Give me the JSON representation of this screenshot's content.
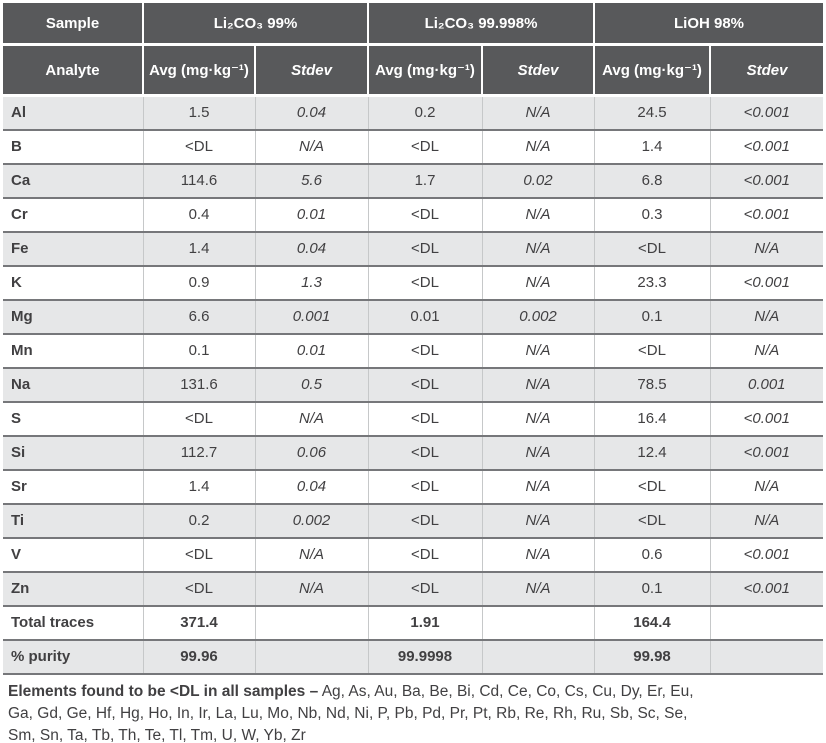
{
  "colors": {
    "header_bg": "#58595b",
    "header_text": "#ffffff",
    "row_shade_bg": "#e6e7e8",
    "row_bg": "#ffffff",
    "text": "#414042",
    "row_divider": "#76777a",
    "column_divider": "#c6c8c9"
  },
  "table": {
    "header": {
      "sample": "Sample",
      "analyte": "Analyte",
      "samples": [
        "Li₂CO₃ 99%",
        "Li₂CO₃ 99.998%",
        "LiOH 98%"
      ],
      "avg": "Avg (mg·kg⁻¹)",
      "stdev": "Stdev"
    },
    "rows": [
      [
        "Al",
        "1.5",
        "0.04",
        "0.2",
        "N/A",
        "24.5",
        "<0.001"
      ],
      [
        "B",
        "<DL",
        "N/A",
        "<DL",
        "N/A",
        "1.4",
        "<0.001"
      ],
      [
        "Ca",
        "114.6",
        "5.6",
        "1.7",
        "0.02",
        "6.8",
        "<0.001"
      ],
      [
        "Cr",
        "0.4",
        "0.01",
        "<DL",
        "N/A",
        "0.3",
        "<0.001"
      ],
      [
        "Fe",
        "1.4",
        "0.04",
        "<DL",
        "N/A",
        "<DL",
        "N/A"
      ],
      [
        "K",
        "0.9",
        "1.3",
        "<DL",
        "N/A",
        "23.3",
        "<0.001"
      ],
      [
        "Mg",
        "6.6",
        "0.001",
        "0.01",
        "0.002",
        "0.1",
        "N/A"
      ],
      [
        "Mn",
        "0.1",
        "0.01",
        "<DL",
        "N/A",
        "<DL",
        "N/A"
      ],
      [
        "Na",
        "131.6",
        "0.5",
        "<DL",
        "N/A",
        "78.5",
        "0.001"
      ],
      [
        "S",
        "<DL",
        "N/A",
        "<DL",
        "N/A",
        "16.4",
        "<0.001"
      ],
      [
        "Si",
        "112.7",
        "0.06",
        "<DL",
        "N/A",
        "12.4",
        "<0.001"
      ],
      [
        "Sr",
        "1.4",
        "0.04",
        "<DL",
        "N/A",
        "<DL",
        "N/A"
      ],
      [
        "Ti",
        "0.2",
        "0.002",
        "<DL",
        "N/A",
        "<DL",
        "N/A"
      ],
      [
        "V",
        "<DL",
        "N/A",
        "<DL",
        "N/A",
        "0.6",
        "<0.001"
      ],
      [
        "Zn",
        "<DL",
        "N/A",
        "<DL",
        "N/A",
        "0.1",
        "<0.001"
      ]
    ],
    "summary": [
      {
        "label": "Total traces",
        "values": [
          "371.4",
          "1.91",
          "164.4"
        ]
      },
      {
        "label": "% purity",
        "values": [
          "99.96",
          "99.9998",
          "99.98"
        ]
      }
    ]
  },
  "footnote": {
    "bold": "Elements found to be <DL in all samples –",
    "lines": [
      "Ag, As, Au, Ba, Be, Bi, Cd, Ce, Co, Cs, Cu, Dy, Er, Eu,",
      "Ga, Gd, Ge, Hf, Hg, Ho, In, Ir, La, Lu, Mo, Nb, Nd, Ni, P, Pb, Pd, Pr, Pt, Rb, Re, Rh, Ru, Sb, Sc, Se,",
      "Sm, Sn, Ta, Tb, Th, Te, Tl, Tm, U, W, Yb, Zr"
    ]
  }
}
